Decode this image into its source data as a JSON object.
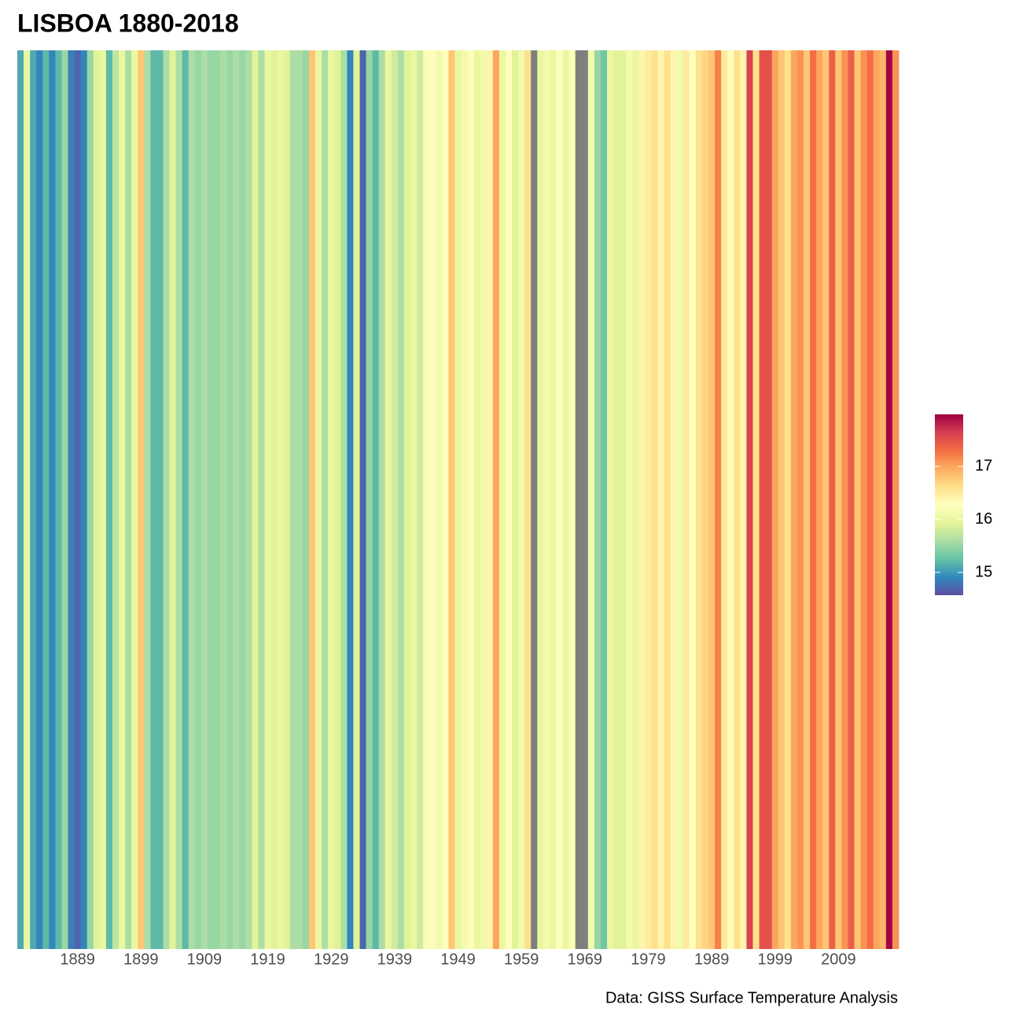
{
  "chart_data": {
    "type": "stripes",
    "title": "LISBOA 1880-2018",
    "caption": "Data: GISS Surface Temperature Analysis",
    "x": [
      1880,
      1881,
      1882,
      1883,
      1884,
      1885,
      1886,
      1887,
      1888,
      1889,
      1890,
      1891,
      1892,
      1893,
      1894,
      1895,
      1896,
      1897,
      1898,
      1899,
      1900,
      1901,
      1902,
      1903,
      1904,
      1905,
      1906,
      1907,
      1908,
      1909,
      1910,
      1911,
      1912,
      1913,
      1914,
      1915,
      1916,
      1917,
      1918,
      1919,
      1920,
      1921,
      1922,
      1923,
      1924,
      1925,
      1926,
      1927,
      1928,
      1929,
      1930,
      1931,
      1932,
      1933,
      1934,
      1935,
      1936,
      1937,
      1938,
      1939,
      1940,
      1941,
      1942,
      1943,
      1944,
      1945,
      1946,
      1947,
      1948,
      1949,
      1950,
      1951,
      1952,
      1953,
      1954,
      1955,
      1956,
      1957,
      1958,
      1959,
      1960,
      1961,
      1962,
      1963,
      1964,
      1965,
      1966,
      1967,
      1968,
      1969,
      1970,
      1971,
      1972,
      1973,
      1974,
      1975,
      1976,
      1977,
      1978,
      1979,
      1980,
      1981,
      1982,
      1983,
      1984,
      1985,
      1986,
      1987,
      1988,
      1989,
      1990,
      1991,
      1992,
      1993,
      1994,
      1995,
      1996,
      1997,
      1998,
      1999,
      2000,
      2001,
      2002,
      2003,
      2004,
      2005,
      2006,
      2007,
      2008,
      2009,
      2010,
      2011,
      2012,
      2013,
      2014,
      2015,
      2016,
      2017,
      2018
    ],
    "values": [
      15.1,
      16.0,
      15.1,
      14.9,
      15.2,
      14.9,
      15.2,
      15.5,
      14.85,
      14.7,
      14.9,
      15.5,
      15.9,
      16.0,
      15.2,
      15.7,
      16.0,
      15.6,
      16.0,
      16.8,
      15.6,
      15.2,
      15.2,
      15.6,
      15.9,
      15.6,
      15.2,
      15.6,
      15.5,
      15.6,
      15.5,
      15.5,
      15.6,
      15.5,
      15.6,
      15.5,
      15.6,
      15.9,
      15.6,
      16.0,
      15.9,
      16.0,
      15.9,
      15.6,
      15.6,
      15.5,
      16.8,
      16.0,
      15.6,
      16.0,
      15.9,
      15.6,
      14.9,
      15.9,
      14.7,
      15.5,
      15.2,
      15.6,
      16.0,
      15.8,
      15.6,
      15.9,
      16.0,
      15.8,
      16.2,
      16.3,
      16.1,
      16.3,
      16.8,
      16.0,
      16.1,
      16.3,
      16.0,
      16.1,
      16.4,
      17.0,
      16.0,
      16.3,
      15.9,
      16.1,
      16.6,
      null,
      16.0,
      16.1,
      16.0,
      16.3,
      16.0,
      16.2,
      null,
      null,
      16.1,
      15.5,
      15.3,
      16.0,
      15.9,
      15.9,
      16.1,
      16.0,
      16.4,
      16.5,
      16.6,
      16.4,
      16.6,
      16.4,
      16.1,
      16.5,
      16.3,
      16.6,
      16.7,
      16.8,
      17.2,
      16.5,
      16.3,
      16.6,
      16.4,
      17.6,
      16.6,
      17.5,
      17.5,
      17.0,
      16.8,
      16.6,
      17.0,
      17.1,
      16.8,
      17.3,
      17.0,
      16.8,
      17.4,
      16.8,
      17.1,
      17.4,
      16.8,
      17.1,
      17.3,
      17.0,
      16.9,
      17.95,
      17.1
    ],
    "xlim": [
      1879.5,
      2018.5
    ],
    "xticks": [
      1889,
      1899,
      1909,
      1919,
      1929,
      1939,
      1949,
      1959,
      1969,
      1979,
      1989,
      1999,
      2009
    ],
    "colorbar_lim": [
      14.57,
      17.98
    ],
    "colorbar_ticks": [
      15,
      16,
      17
    ],
    "colors": [
      "#5E4FA2",
      "#3288BD",
      "#66C2A5",
      "#ABDDA4",
      "#E6F598",
      "#FFFFBF",
      "#FEE08B",
      "#FDAE61",
      "#F46D43",
      "#D53E4F",
      "#9E0142"
    ],
    "na_color": "#7F7F7F"
  }
}
